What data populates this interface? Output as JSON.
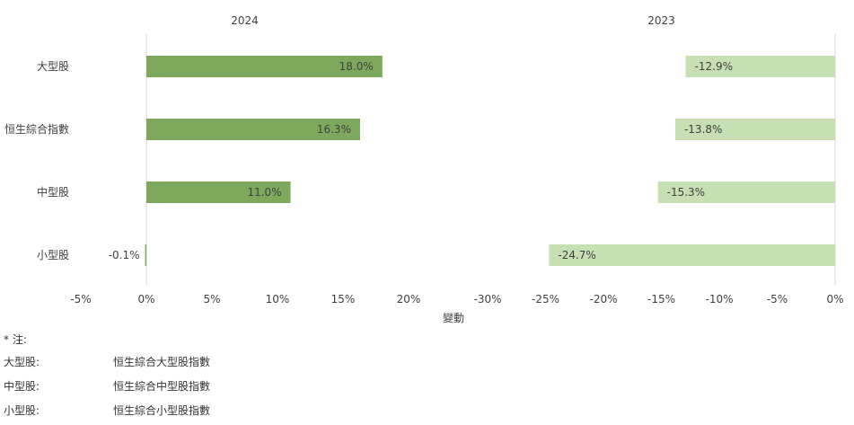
{
  "chart_data": {
    "type": "bar",
    "orientation": "horizontal",
    "categories": [
      "大型股",
      "恒生綜合指數",
      "中型股",
      "小型股"
    ],
    "xlabel": "變動",
    "panels": [
      {
        "title": "2024",
        "values": [
          18.0,
          16.3,
          11.0,
          -0.1
        ],
        "labels": [
          "18.0%",
          "16.3%",
          "11.0%",
          "-0.1%"
        ],
        "xlim": [
          -5,
          20
        ],
        "ticks": [
          -5,
          0,
          5,
          10,
          15,
          20
        ],
        "tick_labels": [
          "-5%",
          "0%",
          "5%",
          "10%",
          "15%",
          "20%"
        ],
        "color": "#7ea95c"
      },
      {
        "title": "2023",
        "values": [
          -12.9,
          -13.8,
          -15.3,
          -24.7
        ],
        "labels": [
          "-12.9%",
          "-13.8%",
          "-15.3%",
          "-24.7%"
        ],
        "xlim": [
          -30,
          0
        ],
        "ticks": [
          -30,
          -25,
          -20,
          -15,
          -10,
          -5,
          0
        ],
        "tick_labels": [
          "-30%",
          "-25%",
          "-20%",
          "-15%",
          "-10%",
          "-5%",
          "0%"
        ],
        "color": "#c6e0b3"
      }
    ]
  },
  "notes": {
    "heading": "* 注:",
    "items": [
      {
        "key": "大型股:",
        "value": "恒生綜合大型股指數"
      },
      {
        "key": "中型股:",
        "value": "恒生綜合中型股指數"
      },
      {
        "key": "小型股:",
        "value": "恒生綜合小型股指數"
      }
    ]
  }
}
